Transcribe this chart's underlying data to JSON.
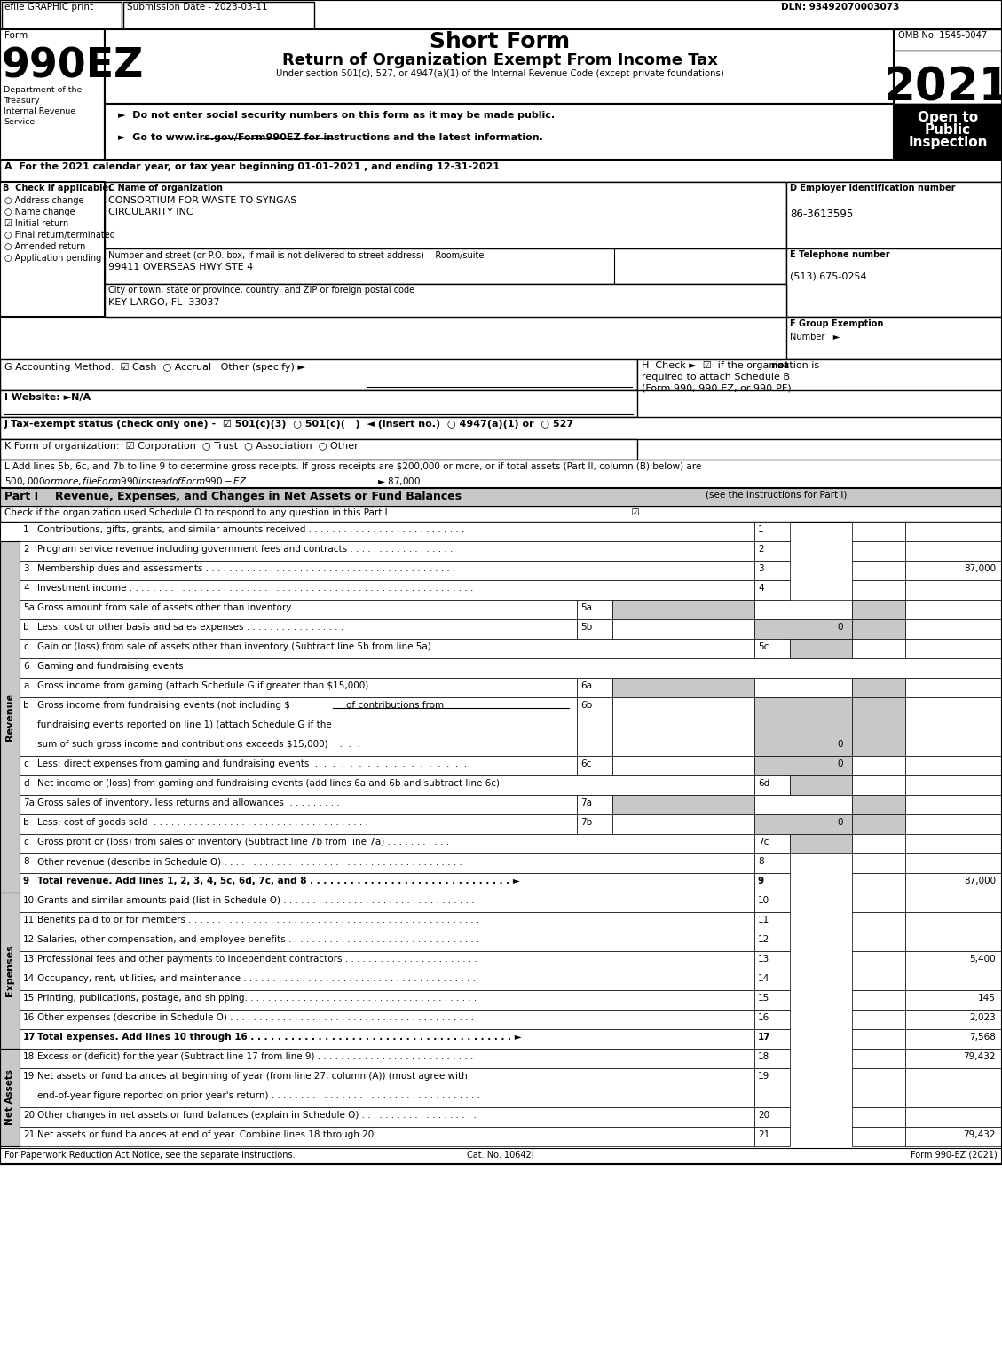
{
  "title_header": "Short Form",
  "title_main": "Return of Organization Exempt From Income Tax",
  "subtitle": "Under section 501(c), 527, or 4947(a)(1) of the Internal Revenue Code (except private foundations)",
  "efile_text": "efile GRAPHIC print",
  "submission_date": "Submission Date - 2023-03-11",
  "dln": "DLN: 93492070003073",
  "omb": "OMB No. 1545-0047",
  "year": "2021",
  "form_label": "Form",
  "form_number": "990EZ",
  "dept1": "Department of the",
  "dept2": "Treasury",
  "dept3": "Internal Revenue",
  "dept4": "Service",
  "do_not_enter": "►  Do not enter social security numbers on this form as it may be made public.",
  "go_to": "►  Go to www.irs.gov/Form990EZ for instructions and the latest information.",
  "section_a": "A  For the 2021 calendar year, or tax year beginning 01-01-2021 , and ending 12-31-2021",
  "check_b1": "○ Address change",
  "check_b2": "○ Name change",
  "check_b3": "☑ Initial return",
  "check_b4": "○ Final return/terminated",
  "check_b5": "○ Amended return",
  "check_b6": "○ Application pending",
  "section_c_label": "C Name of organization",
  "org_name1": "CONSORTIUM FOR WASTE TO SYNGAS",
  "org_name2": "CIRCULARITY INC",
  "section_d_label": "D Employer identification number",
  "ein": "86-3613595",
  "street_label": "Number and street (or P.O. box, if mail is not delivered to street address)    Room/suite",
  "street": "99411 OVERSEAS HWY STE 4",
  "section_e_label": "E Telephone number",
  "phone": "(513) 675-0254",
  "city_label": "City or town, state or province, country, and ZIP or foreign postal code",
  "city": "KEY LARGO, FL  33037",
  "section_f_label": "F Group Exemption",
  "section_f2": "Number   ►",
  "section_g": "G Accounting Method:  ☑ Cash  ○ Accrual   Other (specify) ►",
  "section_i": "I Website: ►N/A",
  "section_j": "J Tax-exempt status (check only one) -  ☑ 501(c)(3)  ○ 501(c)(   )  ◄ (insert no.)  ○ 4947(a)(1) or  ○ 527",
  "section_k": "K Form of organization:  ☑ Corporation  ○ Trust  ○ Association  ○ Other",
  "section_l1": "L Add lines 5b, 6c, and 7b to line 9 to determine gross receipts. If gross receipts are $200,000 or more, or if total assets (Part II, column (B) below) are",
  "section_l2": "$500,000 or more, file Form 990 instead of Form 990-EZ . . . . . . . . . . . . . . . . . . . . . . . . . . . .  ► $ 87,000",
  "part1_title": "Part I",
  "part1_desc": "Revenue, Expenses, and Changes in Net Assets or Fund Balances",
  "part1_sub": "(see the instructions for Part I)",
  "part1_check": "Check if the organization used Schedule O to respond to any question in this Part I . . . . . . . . . . . . . . . . . . . . . . . . . . . . . . . . . . . . . . . . . ☑",
  "footer_left": "For Paperwork Reduction Act Notice, see the separate instructions.",
  "footer_cat": "Cat. No. 10642I",
  "footer_right": "Form 990-EZ (2021)",
  "bg_color": "#ffffff",
  "gray_bg": "#c8c8c8",
  "dark_gray": "#a0a0a0"
}
